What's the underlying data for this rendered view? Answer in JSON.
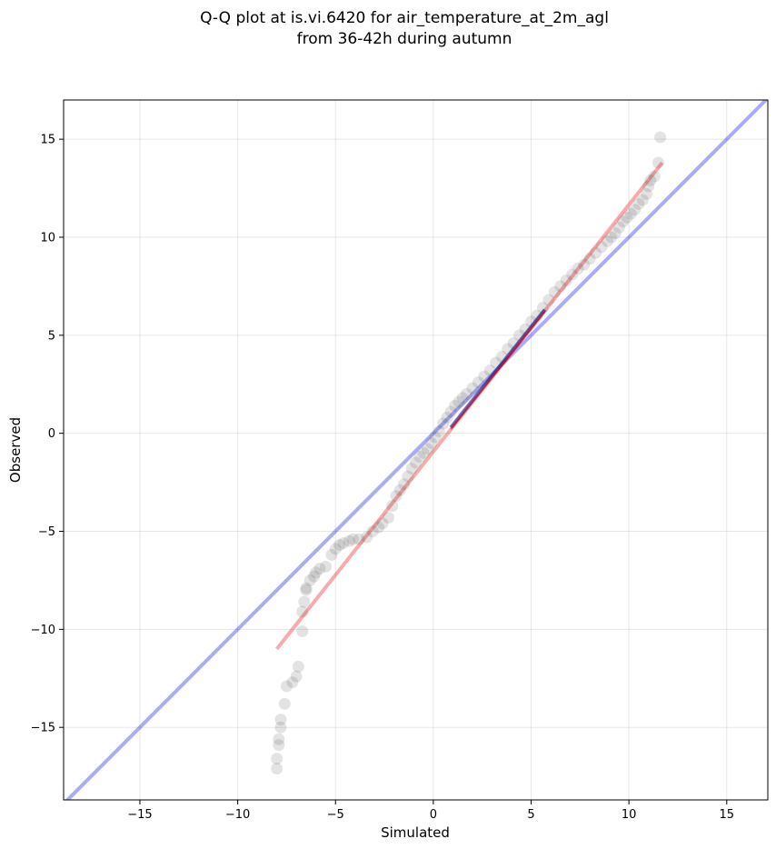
{
  "chart_data": {
    "type": "scatter",
    "title_lines": [
      "Q-Q plot at is.vi.6420 for air_temperature_at_2m_agl",
      "from 36-42h during autumn"
    ],
    "xlabel": "Simulated",
    "ylabel": "Observed",
    "xlim": [
      -18.9,
      17.1
    ],
    "ylim": [
      -18.7,
      17.0
    ],
    "xticks": [
      -15,
      -10,
      -5,
      0,
      5,
      10,
      15
    ],
    "xtick_labels": [
      "−15",
      "−10",
      "−5",
      "0",
      "5",
      "10",
      "15"
    ],
    "yticks": [
      -15,
      -10,
      -5,
      0,
      5,
      10,
      15
    ],
    "ytick_labels": [
      "−15",
      "−10",
      "−5",
      "0",
      "5",
      "10",
      "15"
    ],
    "grid": true,
    "colors": {
      "points": "#444444",
      "identity_line": "#0000ee",
      "fit_line": "#ee0000",
      "interquartile": "#000080"
    },
    "identity_line": {
      "x": [
        -18.9,
        17.1
      ],
      "y": [
        -18.9,
        17.1
      ]
    },
    "fit_line": {
      "x": [
        -8.0,
        11.7
      ],
      "y": [
        -11.0,
        13.8
      ]
    },
    "interquartile_segment": {
      "x": [
        0.9,
        5.7
      ],
      "y": [
        0.3,
        6.3
      ]
    },
    "points": {
      "x": [
        -8.0,
        -8.0,
        -7.9,
        -7.9,
        -7.8,
        -7.8,
        -7.6,
        -7.5,
        -7.2,
        -7.0,
        -6.9,
        -6.7,
        -6.7,
        -6.6,
        -6.5,
        -6.5,
        -6.3,
        -6.1,
        -6.0,
        -5.8,
        -5.5,
        -5.2,
        -5.0,
        -4.8,
        -4.6,
        -4.3,
        -4.1,
        -3.8,
        -3.4,
        -3.1,
        -2.8,
        -2.6,
        -2.3,
        -2.1,
        -1.9,
        -1.7,
        -1.5,
        -1.3,
        -1.1,
        -0.9,
        -0.7,
        -0.5,
        -0.3,
        -0.1,
        0.1,
        0.3,
        0.5,
        0.7,
        0.9,
        1.1,
        1.3,
        1.5,
        1.7,
        2.0,
        2.3,
        2.6,
        2.9,
        3.2,
        3.5,
        3.8,
        4.1,
        4.4,
        4.7,
        5.0,
        5.3,
        5.6,
        5.9,
        6.2,
        6.5,
        6.8,
        7.1,
        7.4,
        7.7,
        8.0,
        8.3,
        8.6,
        8.9,
        9.1,
        9.3,
        9.5,
        9.7,
        9.9,
        10.1,
        10.3,
        10.5,
        10.7,
        10.9,
        11.0,
        11.1,
        11.3,
        11.5,
        11.6
      ],
      "y": [
        -17.1,
        -16.6,
        -15.9,
        -15.6,
        -15.0,
        -14.6,
        -13.8,
        -12.9,
        -12.7,
        -12.4,
        -11.9,
        -10.1,
        -9.1,
        -8.6,
        -8.0,
        -7.9,
        -7.5,
        -7.3,
        -7.1,
        -6.9,
        -6.8,
        -6.2,
        -5.9,
        -5.7,
        -5.6,
        -5.5,
        -5.4,
        -5.4,
        -5.3,
        -5.0,
        -4.8,
        -4.6,
        -4.3,
        -3.7,
        -3.2,
        -2.9,
        -2.6,
        -2.2,
        -1.8,
        -1.5,
        -1.2,
        -1.0,
        -0.8,
        -0.5,
        -0.2,
        0.1,
        0.5,
        0.8,
        1.1,
        1.4,
        1.6,
        1.8,
        2.0,
        2.3,
        2.6,
        2.9,
        3.2,
        3.6,
        3.9,
        4.3,
        4.6,
        5.0,
        5.3,
        5.7,
        6.0,
        6.4,
        6.8,
        7.2,
        7.5,
        7.8,
        8.1,
        8.4,
        8.6,
        8.9,
        9.2,
        9.5,
        9.8,
        10.0,
        10.2,
        10.5,
        10.8,
        11.0,
        11.2,
        11.4,
        11.7,
        11.9,
        12.2,
        12.6,
        12.9,
        13.1,
        13.8,
        15.1
      ]
    }
  }
}
